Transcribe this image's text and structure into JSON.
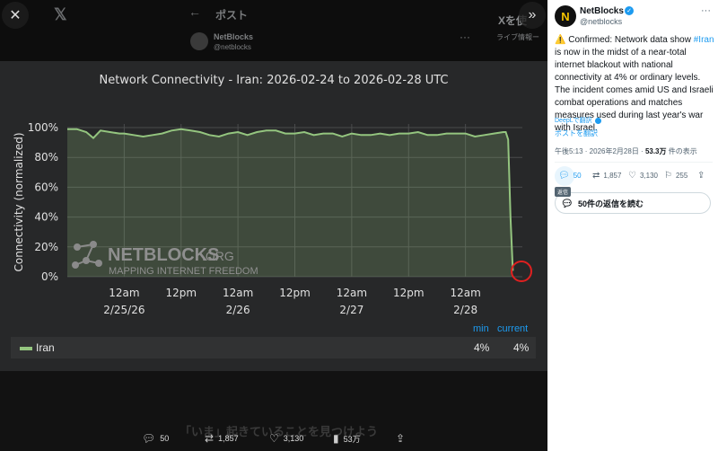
{
  "viewer": {
    "background_header": {
      "back_arrow": "←",
      "title": "ポスト",
      "name": "NetBlocks",
      "handle": "@netblocks",
      "right_title": "Xを使",
      "right_sub": "ライブ情報ー",
      "dots": "···"
    },
    "close_icon": "✕",
    "expand_icon": "»",
    "promo_text": "「いま」起きていることを見つけよう"
  },
  "chart": {
    "title": "Network Connectivity - Iran: 2026-02-24 to 2026-02-28 UTC",
    "legend": {
      "min_header": "min",
      "current_header": "current",
      "name": "Iran",
      "min_value": "4%",
      "current_value": "4%"
    },
    "watermark_title": "NETBLOCKS",
    "watermark_suffix": ".ORG",
    "watermark_sub": "MAPPING INTERNET FREEDOM"
  },
  "chart_data": {
    "type": "area",
    "title": "Network Connectivity - Iran: 2026-02-24 to 2026-02-28 UTC",
    "ylabel": "Connectivity (normalized)",
    "xlabel": "",
    "ylim": [
      0,
      100
    ],
    "yticks": [
      "0%",
      "20%",
      "40%",
      "60%",
      "80%",
      "100%"
    ],
    "xticks": [
      {
        "t": 0,
        "line1": "12am",
        "line2": "2/25/26"
      },
      {
        "t": 12,
        "line1": "12pm",
        "line2": ""
      },
      {
        "t": 24,
        "line1": "12am",
        "line2": "2/26"
      },
      {
        "t": 36,
        "line1": "12pm",
        "line2": ""
      },
      {
        "t": 48,
        "line1": "12am",
        "line2": "2/27"
      },
      {
        "t": 60,
        "line1": "12pm",
        "line2": ""
      },
      {
        "t": 72,
        "line1": "12am",
        "line2": "2/28"
      }
    ],
    "x_unit": "hours from 2026-02-25 00:00 UTC",
    "xlim": [
      -12,
      84
    ],
    "grid": true,
    "legend_position": "bottom",
    "series": [
      {
        "name": "Iran",
        "color": "#94c57f",
        "x": [
          -12,
          -10,
          -8,
          -6.5,
          -5,
          -3,
          -1,
          0,
          2,
          4,
          6,
          8,
          10,
          12,
          14,
          16,
          18,
          20,
          22,
          24,
          26,
          28,
          30,
          32,
          34,
          36,
          38,
          40,
          42,
          44,
          46,
          48,
          50,
          52,
          54,
          56,
          58,
          60,
          62,
          64,
          66,
          68,
          70,
          72,
          74,
          76,
          78,
          80,
          80.5,
          81,
          81.5,
          82
        ],
        "y": [
          99,
          99,
          97,
          93,
          98,
          97,
          96,
          96,
          95,
          94,
          95,
          96,
          98,
          99,
          98,
          97,
          95,
          94,
          96,
          97,
          95,
          97,
          98,
          98,
          96,
          96,
          97,
          95,
          96,
          96,
          94,
          96,
          95,
          95,
          96,
          95,
          96,
          96,
          97,
          95,
          95,
          96,
          96,
          96,
          94,
          95,
          96,
          97,
          97,
          92,
          40,
          4
        ]
      }
    ]
  },
  "action_bar": {
    "reply": "50",
    "repost": "1,857",
    "like": "3,130",
    "views": "53万"
  },
  "tweet": {
    "author_name": "NetBlocks",
    "author_handle": "@netblocks",
    "more": "···",
    "body_lines": [
      "⚠️ Confirmed: Network data show ",
      "#Iran",
      " is now in the midst of a near-total internet blackout with national connectivity at 4% or ordinary levels. The incident comes amid US and Israeli combat operations and matches measures used during last year's war with Israel."
    ],
    "deepl": "DeepLで翻訳",
    "translate_post": "ポストを翻訳",
    "meta_time": "午後5:13 · 2026年2月28日 · ",
    "meta_views": "53.3万",
    "meta_views_suffix": " 件の表示",
    "stats": {
      "reply": "50",
      "repost": "1,857",
      "like": "3,130",
      "bookmark": "255"
    },
    "tooltip": "返信",
    "replies_prompt": "50件の返信を読む"
  },
  "colors": {
    "accent": "#1d9bf0",
    "series": "#94c57f",
    "highlight": "#e02020"
  }
}
